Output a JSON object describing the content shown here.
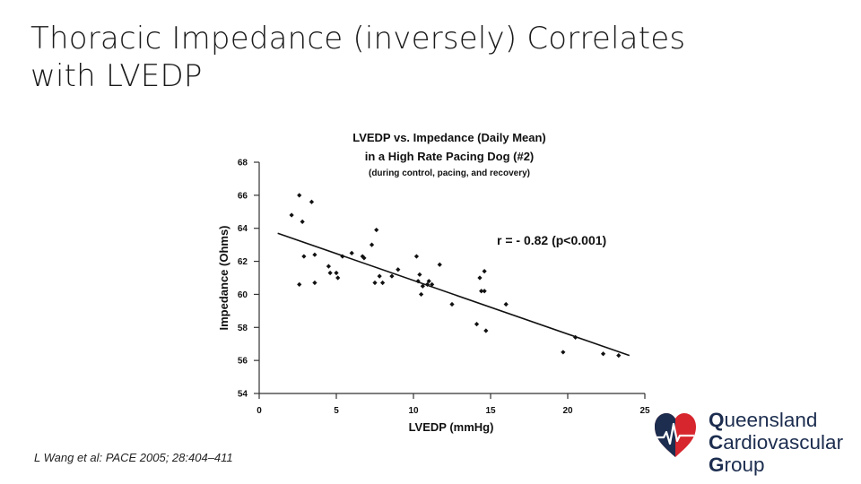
{
  "slide": {
    "title_line1": "Thoracic Impedance (inversely) Correlates",
    "title_line2": "with LVEDP",
    "citation": "L Wang et al: PACE 2005; 28:404–411"
  },
  "logo": {
    "line1_initial": "Q",
    "line1_rest": "ueensland",
    "line2_initial": "C",
    "line2_rest": "ardiovascular",
    "line3_initial": "G",
    "line3_rest": "roup",
    "colors": {
      "text": "#1c2d4f",
      "red": "#d7262e",
      "navy": "#1c2d4f"
    }
  },
  "chart_data": {
    "type": "scatter",
    "title_line1": "LVEDP vs. Impedance (Daily Mean)",
    "title_line2": "in a High Rate Pacing Dog (#2)",
    "subtitle": "(during control, pacing, and recovery)",
    "xlabel": "LVEDP (mmHg)",
    "ylabel": "Impedance (Ohms)",
    "xlim": [
      0,
      25
    ],
    "ylim": [
      54,
      68
    ],
    "xticks": [
      0,
      5,
      10,
      15,
      20,
      25
    ],
    "yticks": [
      54,
      56,
      58,
      60,
      62,
      64,
      66,
      68
    ],
    "annotation": "r = - 0.82 (p<0.001)",
    "grid": false,
    "points": [
      [
        2.1,
        64.8
      ],
      [
        2.6,
        66.0
      ],
      [
        3.4,
        65.6
      ],
      [
        2.8,
        64.4
      ],
      [
        2.9,
        62.3
      ],
      [
        3.6,
        62.4
      ],
      [
        2.6,
        60.6
      ],
      [
        3.6,
        60.7
      ],
      [
        4.5,
        61.7
      ],
      [
        4.6,
        61.3
      ],
      [
        5.0,
        61.3
      ],
      [
        5.1,
        61.0
      ],
      [
        5.4,
        62.3
      ],
      [
        6.0,
        62.5
      ],
      [
        6.7,
        62.3
      ],
      [
        6.8,
        62.2
      ],
      [
        7.3,
        63.0
      ],
      [
        7.6,
        63.9
      ],
      [
        7.5,
        60.7
      ],
      [
        7.8,
        61.1
      ],
      [
        8.0,
        60.7
      ],
      [
        8.6,
        61.1
      ],
      [
        9.0,
        61.5
      ],
      [
        10.2,
        62.3
      ],
      [
        10.3,
        60.8
      ],
      [
        10.4,
        61.2
      ],
      [
        10.5,
        60.0
      ],
      [
        10.6,
        60.5
      ],
      [
        10.9,
        60.6
      ],
      [
        11.0,
        60.8
      ],
      [
        11.2,
        60.6
      ],
      [
        11.7,
        61.8
      ],
      [
        12.5,
        59.4
      ],
      [
        14.1,
        58.2
      ],
      [
        14.3,
        61.0
      ],
      [
        14.4,
        60.2
      ],
      [
        14.6,
        61.4
      ],
      [
        14.6,
        60.2
      ],
      [
        14.7,
        57.8
      ],
      [
        16.0,
        59.4
      ],
      [
        19.7,
        56.5
      ],
      [
        20.5,
        57.4
      ],
      [
        22.3,
        56.4
      ],
      [
        23.3,
        56.3
      ]
    ],
    "trendline": {
      "x": [
        1.2,
        24.0
      ],
      "y": [
        63.7,
        56.3
      ]
    },
    "colors": {
      "points": "#111111",
      "axis": "#333333",
      "trendline": "#111111"
    }
  }
}
